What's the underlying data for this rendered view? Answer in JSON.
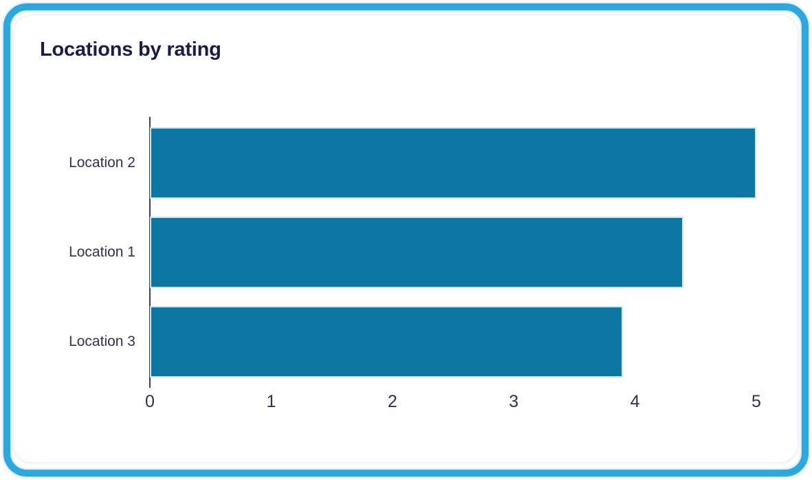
{
  "chart_data": {
    "type": "bar",
    "orientation": "horizontal",
    "title": "Locations by rating",
    "categories": [
      "Location 2",
      "Location 1",
      "Location 3"
    ],
    "values": [
      5,
      4.4,
      3.9
    ],
    "xlabel": "",
    "ylabel": "",
    "xlim": [
      0,
      5
    ],
    "x_ticks": [
      "0",
      "1",
      "2",
      "3",
      "4",
      "5"
    ],
    "grid": false,
    "legend": false,
    "sort_order": "descending by rating"
  },
  "colors": {
    "bar": "#0d76a3",
    "bar_edge": "#cde3ef",
    "title_text": "#191c45",
    "category_label": "#30324f",
    "tick_label": "#2f3150",
    "axis_line": "#3c3e60",
    "highlight_border": "#2ea7dd",
    "card_background": "#ffffff"
  }
}
